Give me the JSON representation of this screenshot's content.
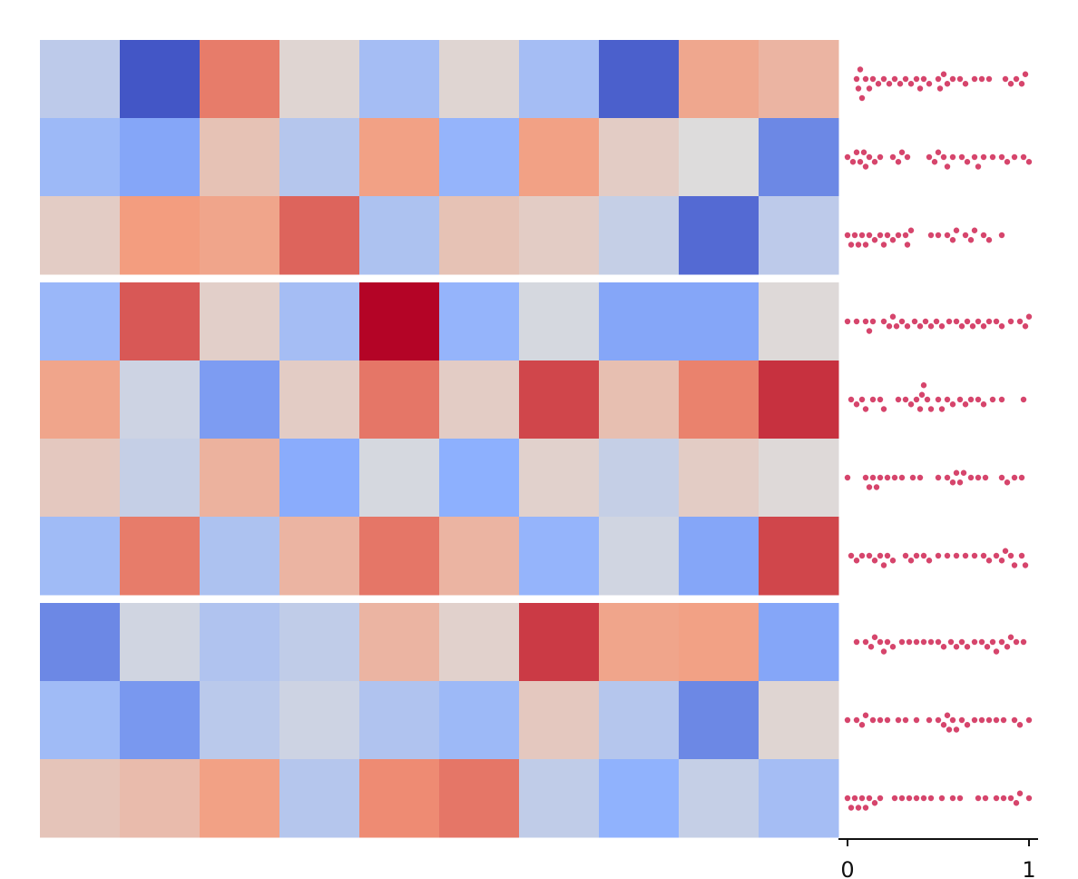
{
  "chart_data": [
    {
      "type": "heatmap",
      "vlim": [
        -1,
        1
      ],
      "colormap": [
        "#3b4cc0",
        "#8db0fe",
        "#dddcdc",
        "#f49a7b",
        "#b40426"
      ],
      "row_groups": [
        3,
        4,
        3
      ],
      "values": [
        [
          -0.2,
          -0.95,
          0.6,
          0.05,
          -0.35,
          0.05,
          -0.35,
          -0.9,
          0.4,
          0.3
        ],
        [
          -0.4,
          -0.55,
          0.2,
          -0.25,
          0.45,
          -0.45,
          0.45,
          0.12,
          0.0,
          -0.7
        ],
        [
          0.12,
          0.48,
          0.42,
          0.68,
          -0.3,
          0.2,
          0.12,
          -0.15,
          -0.85,
          -0.2
        ],
        [
          -0.42,
          0.72,
          0.1,
          -0.35,
          1.0,
          -0.45,
          -0.05,
          -0.55,
          -0.55,
          0.02
        ],
        [
          0.42,
          -0.1,
          -0.6,
          0.12,
          0.62,
          0.12,
          0.78,
          0.22,
          0.58,
          0.85
        ],
        [
          0.15,
          -0.15,
          0.32,
          -0.52,
          -0.05,
          -0.5,
          0.08,
          -0.15,
          0.12,
          0.02
        ],
        [
          -0.38,
          0.6,
          -0.3,
          0.3,
          0.62,
          0.3,
          -0.45,
          -0.08,
          -0.55,
          0.78
        ],
        [
          -0.7,
          -0.08,
          -0.28,
          -0.18,
          0.3,
          0.08,
          0.82,
          0.42,
          0.45,
          -0.55
        ],
        [
          -0.38,
          -0.62,
          -0.22,
          -0.1,
          -0.28,
          -0.4,
          0.15,
          -0.25,
          -0.7,
          0.05
        ],
        [
          0.18,
          0.25,
          0.45,
          -0.25,
          0.55,
          0.62,
          -0.18,
          -0.48,
          -0.15,
          -0.35
        ]
      ]
    },
    {
      "type": "swarm",
      "color": "#d6456c",
      "xlim": [
        -0.05,
        1.05
      ],
      "xticks": [
        0,
        1
      ],
      "values": [
        [
          0.05,
          0.06,
          0.07,
          0.08,
          0.1,
          0.12,
          0.14,
          0.17,
          0.2,
          0.23,
          0.26,
          0.29,
          0.32,
          0.35,
          0.38,
          0.4,
          0.42,
          0.45,
          0.5,
          0.51,
          0.53,
          0.55,
          0.58,
          0.62,
          0.65,
          0.7,
          0.74,
          0.78,
          0.87,
          0.9,
          0.93,
          0.96,
          0.98
        ],
        [
          0.0,
          0.03,
          0.05,
          0.07,
          0.09,
          0.1,
          0.12,
          0.15,
          0.18,
          0.25,
          0.28,
          0.3,
          0.33,
          0.45,
          0.48,
          0.5,
          0.53,
          0.55,
          0.58,
          0.63,
          0.66,
          0.7,
          0.72,
          0.75,
          0.8,
          0.85,
          0.88,
          0.92,
          0.97,
          1.0
        ],
        [
          0.0,
          0.02,
          0.04,
          0.06,
          0.08,
          0.1,
          0.12,
          0.15,
          0.18,
          0.2,
          0.22,
          0.25,
          0.28,
          0.32,
          0.33,
          0.35,
          0.46,
          0.5,
          0.55,
          0.58,
          0.6,
          0.65,
          0.68,
          0.7,
          0.75,
          0.78,
          0.85
        ],
        [
          0.0,
          0.05,
          0.1,
          0.12,
          0.14,
          0.2,
          0.23,
          0.25,
          0.27,
          0.3,
          0.33,
          0.37,
          0.4,
          0.43,
          0.46,
          0.49,
          0.52,
          0.56,
          0.6,
          0.63,
          0.66,
          0.69,
          0.72,
          0.75,
          0.78,
          0.82,
          0.85,
          0.9,
          0.95,
          0.98,
          1.0
        ],
        [
          0.02,
          0.05,
          0.08,
          0.1,
          0.14,
          0.18,
          0.2,
          0.28,
          0.32,
          0.35,
          0.38,
          0.4,
          0.41,
          0.42,
          0.44,
          0.46,
          0.5,
          0.52,
          0.55,
          0.58,
          0.62,
          0.65,
          0.68,
          0.72,
          0.75,
          0.8,
          0.85,
          0.97
        ],
        [
          0.0,
          0.1,
          0.12,
          0.14,
          0.16,
          0.18,
          0.22,
          0.26,
          0.3,
          0.36,
          0.4,
          0.5,
          0.55,
          0.58,
          0.6,
          0.62,
          0.64,
          0.68,
          0.72,
          0.76,
          0.85,
          0.88,
          0.92,
          0.96
        ],
        [
          0.02,
          0.05,
          0.08,
          0.12,
          0.15,
          0.18,
          0.2,
          0.22,
          0.25,
          0.32,
          0.35,
          0.38,
          0.42,
          0.45,
          0.5,
          0.55,
          0.6,
          0.65,
          0.7,
          0.75,
          0.78,
          0.82,
          0.85,
          0.87,
          0.9,
          0.92,
          0.96,
          0.98
        ],
        [
          0.05,
          0.1,
          0.13,
          0.15,
          0.18,
          0.2,
          0.22,
          0.25,
          0.3,
          0.34,
          0.38,
          0.42,
          0.46,
          0.5,
          0.53,
          0.57,
          0.6,
          0.63,
          0.66,
          0.7,
          0.74,
          0.77,
          0.8,
          0.82,
          0.85,
          0.88,
          0.9,
          0.93,
          0.97
        ],
        [
          0.0,
          0.05,
          0.08,
          0.1,
          0.14,
          0.18,
          0.22,
          0.28,
          0.32,
          0.38,
          0.45,
          0.5,
          0.53,
          0.55,
          0.56,
          0.58,
          0.6,
          0.63,
          0.66,
          0.7,
          0.74,
          0.78,
          0.82,
          0.86,
          0.92,
          0.95,
          1.0
        ],
        [
          0.0,
          0.02,
          0.04,
          0.06,
          0.08,
          0.1,
          0.12,
          0.15,
          0.18,
          0.26,
          0.3,
          0.34,
          0.38,
          0.42,
          0.46,
          0.52,
          0.58,
          0.62,
          0.72,
          0.76,
          0.82,
          0.86,
          0.9,
          0.93,
          0.95,
          1.0
        ]
      ]
    }
  ]
}
